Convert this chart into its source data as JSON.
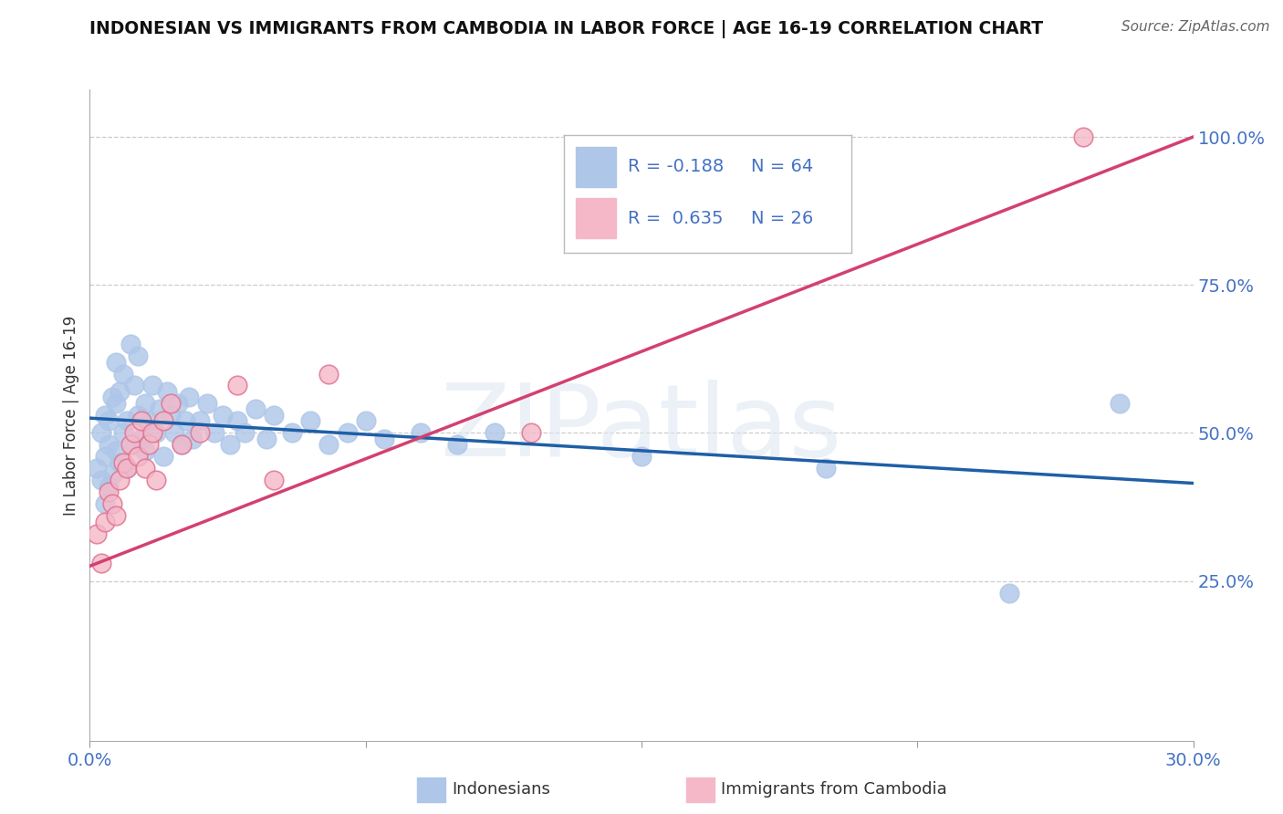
{
  "title": "INDONESIAN VS IMMIGRANTS FROM CAMBODIA IN LABOR FORCE | AGE 16-19 CORRELATION CHART",
  "source": "Source: ZipAtlas.com",
  "ylabel": "In Labor Force | Age 16-19",
  "xlim": [
    0.0,
    0.3
  ],
  "ylim": [
    -0.02,
    1.08
  ],
  "xticks": [
    0.0,
    0.075,
    0.15,
    0.225,
    0.3
  ],
  "xticklabels": [
    "0.0%",
    "",
    "",
    "",
    "30.0%"
  ],
  "yticks": [
    0.25,
    0.5,
    0.75,
    1.0
  ],
  "yticklabels": [
    "25.0%",
    "50.0%",
    "75.0%",
    "100.0%"
  ],
  "r_blue": -0.188,
  "n_blue": 64,
  "r_pink": 0.635,
  "n_pink": 26,
  "blue_fill": "#aec6e8",
  "blue_edge": "#aec6e8",
  "blue_line_color": "#1f5fa6",
  "pink_fill": "#f4b8c8",
  "pink_edge": "#e07090",
  "pink_line_color": "#d44070",
  "legend_color": "#4472c4",
  "indonesians_x": [
    0.002,
    0.003,
    0.003,
    0.004,
    0.004,
    0.004,
    0.005,
    0.005,
    0.005,
    0.006,
    0.006,
    0.007,
    0.007,
    0.007,
    0.008,
    0.008,
    0.009,
    0.009,
    0.01,
    0.01,
    0.011,
    0.012,
    0.012,
    0.013,
    0.013,
    0.014,
    0.015,
    0.015,
    0.016,
    0.017,
    0.018,
    0.019,
    0.02,
    0.021,
    0.022,
    0.023,
    0.024,
    0.025,
    0.026,
    0.027,
    0.028,
    0.03,
    0.032,
    0.034,
    0.036,
    0.038,
    0.04,
    0.042,
    0.045,
    0.048,
    0.05,
    0.055,
    0.06,
    0.065,
    0.07,
    0.075,
    0.08,
    0.09,
    0.1,
    0.11,
    0.15,
    0.2,
    0.25,
    0.28
  ],
  "indonesians_y": [
    0.44,
    0.42,
    0.5,
    0.38,
    0.46,
    0.53,
    0.48,
    0.52,
    0.41,
    0.43,
    0.56,
    0.47,
    0.55,
    0.62,
    0.45,
    0.57,
    0.5,
    0.6,
    0.44,
    0.52,
    0.65,
    0.48,
    0.58,
    0.53,
    0.63,
    0.49,
    0.55,
    0.47,
    0.52,
    0.58,
    0.5,
    0.54,
    0.46,
    0.57,
    0.53,
    0.5,
    0.55,
    0.48,
    0.52,
    0.56,
    0.49,
    0.52,
    0.55,
    0.5,
    0.53,
    0.48,
    0.52,
    0.5,
    0.54,
    0.49,
    0.53,
    0.5,
    0.52,
    0.48,
    0.5,
    0.52,
    0.49,
    0.5,
    0.48,
    0.5,
    0.46,
    0.44,
    0.23,
    0.55
  ],
  "cambodia_x": [
    0.002,
    0.003,
    0.004,
    0.005,
    0.006,
    0.007,
    0.008,
    0.009,
    0.01,
    0.011,
    0.012,
    0.013,
    0.014,
    0.015,
    0.016,
    0.017,
    0.018,
    0.02,
    0.022,
    0.025,
    0.03,
    0.04,
    0.05,
    0.065,
    0.12,
    0.27
  ],
  "cambodia_y": [
    0.33,
    0.28,
    0.35,
    0.4,
    0.38,
    0.36,
    0.42,
    0.45,
    0.44,
    0.48,
    0.5,
    0.46,
    0.52,
    0.44,
    0.48,
    0.5,
    0.42,
    0.52,
    0.55,
    0.48,
    0.5,
    0.58,
    0.42,
    0.6,
    0.5,
    1.0
  ],
  "blue_line_x0": 0.0,
  "blue_line_x1": 0.3,
  "blue_line_y0": 0.525,
  "blue_line_y1": 0.415,
  "pink_line_x0": 0.0,
  "pink_line_x1": 0.3,
  "pink_line_y0": 0.275,
  "pink_line_y1": 1.0
}
